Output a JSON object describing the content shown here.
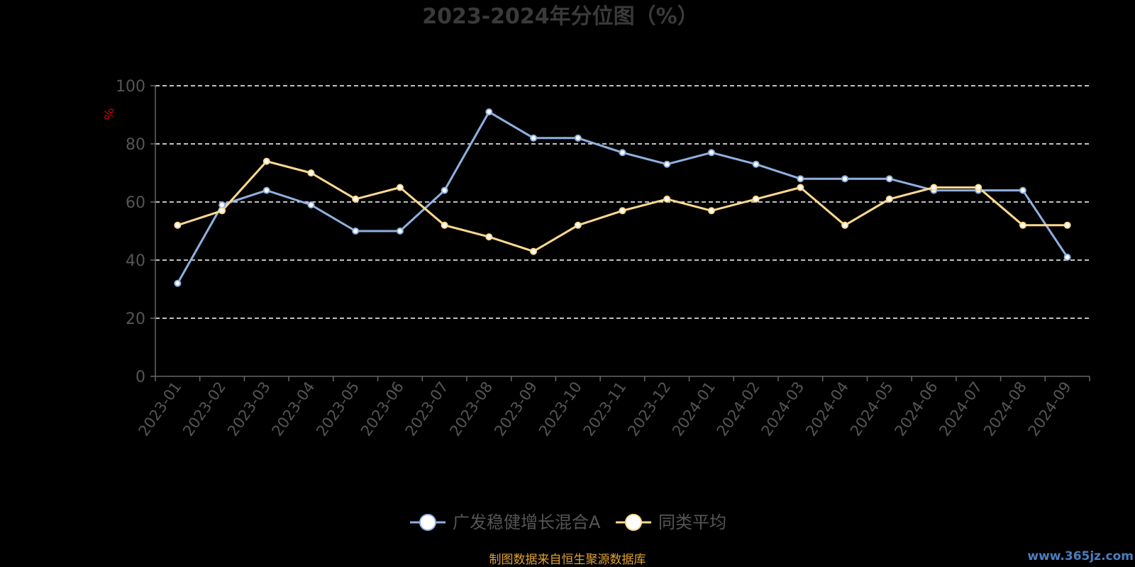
{
  "chart_data": {
    "type": "line",
    "title": "2023-2024年分位图（%）",
    "ylabel": "%",
    "xlabel": "",
    "ylim": [
      0,
      100
    ],
    "yticks": [
      0,
      20,
      40,
      60,
      80,
      100
    ],
    "grid": "horizontal-dashed",
    "legend_position": "bottom-center",
    "categories": [
      "2023-01",
      "2023-02",
      "2023-03",
      "2023-04",
      "2023-05",
      "2023-06",
      "2023-07",
      "2023-08",
      "2023-09",
      "2023-10",
      "2023-11",
      "2023-12",
      "2024-01",
      "2024-02",
      "2024-03",
      "2024-04",
      "2024-05",
      "2024-06",
      "2024-07",
      "2024-08",
      "2024-09"
    ],
    "series": [
      {
        "name": "广发稳健增长混合A",
        "color": "#8fb0e0",
        "values": [
          32,
          59,
          64,
          59,
          50,
          50,
          64,
          91,
          82,
          82,
          77,
          73,
          77,
          73,
          68,
          68,
          68,
          64,
          64,
          64,
          41
        ]
      },
      {
        "name": "同类平均",
        "color": "#ffd98f",
        "values": [
          52,
          57,
          74,
          70,
          61,
          65,
          52,
          48,
          43,
          52,
          57,
          61,
          57,
          61,
          65,
          52,
          61,
          65,
          65,
          52,
          52
        ]
      }
    ],
    "source_note": "制图数据来自恒生聚源数据库",
    "watermark": "www.365jz.com"
  },
  "colors": {
    "background": "#000000",
    "axis": "#666666",
    "tick_text": "#555555",
    "grid": "#ffffff",
    "title": "#3a3a3a",
    "ylabel": "#cc0000",
    "source_note": "#e0a030",
    "watermark": "#4a7fc0"
  }
}
